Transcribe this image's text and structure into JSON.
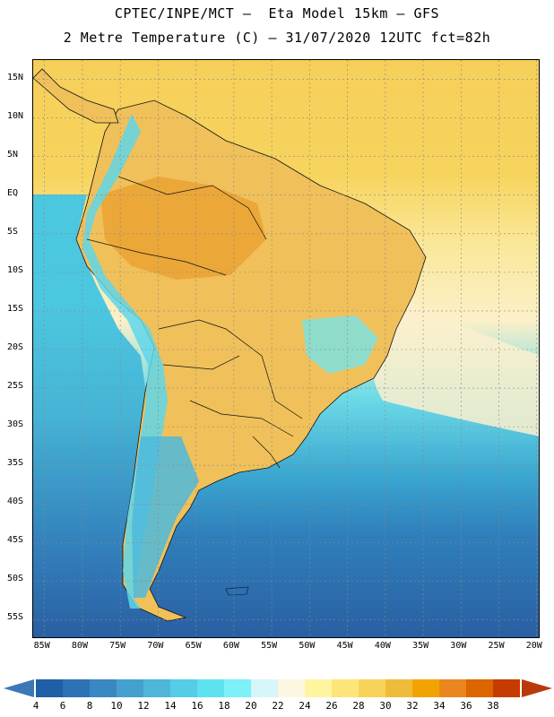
{
  "header": {
    "line1": "CPTEC/INPE/MCT –  Eta Model 15km – GFS",
    "line2": "2 Metre Temperature (C) – 31/07/2020 12UTC fct=82h"
  },
  "map": {
    "variable": "2 Metre Temperature",
    "unit": "C",
    "lat_labels": [
      "15N",
      "10N",
      "5N",
      "EQ",
      "5S",
      "10S",
      "15S",
      "20S",
      "25S",
      "30S",
      "35S",
      "40S",
      "45S",
      "50S",
      "55S"
    ],
    "lon_labels": [
      "85W",
      "80W",
      "75W",
      "70W",
      "65W",
      "60W",
      "55W",
      "50W",
      "45W",
      "40W",
      "35W",
      "30W",
      "25W",
      "20W"
    ],
    "region": "South America"
  },
  "legend": {
    "labels": [
      "4",
      "6",
      "8",
      "10",
      "12",
      "14",
      "16",
      "18",
      "20",
      "22",
      "24",
      "26",
      "28",
      "30",
      "32",
      "34",
      "36",
      "38"
    ],
    "colors": [
      "#1f5fa6",
      "#2d72b5",
      "#3a88c2",
      "#44a0cf",
      "#4db6d9",
      "#55cde6",
      "#5fe2f0",
      "#7ef0f7",
      "#d6f6fb",
      "#fdf7e1",
      "#fff5a0",
      "#fde57a",
      "#f7d35a",
      "#efbb3a",
      "#f3a300",
      "#ea8620",
      "#dc6500",
      "#c63c00"
    ],
    "low_arrow_color": "#3a78b8",
    "high_arrow_color": "#b83a0a"
  }
}
